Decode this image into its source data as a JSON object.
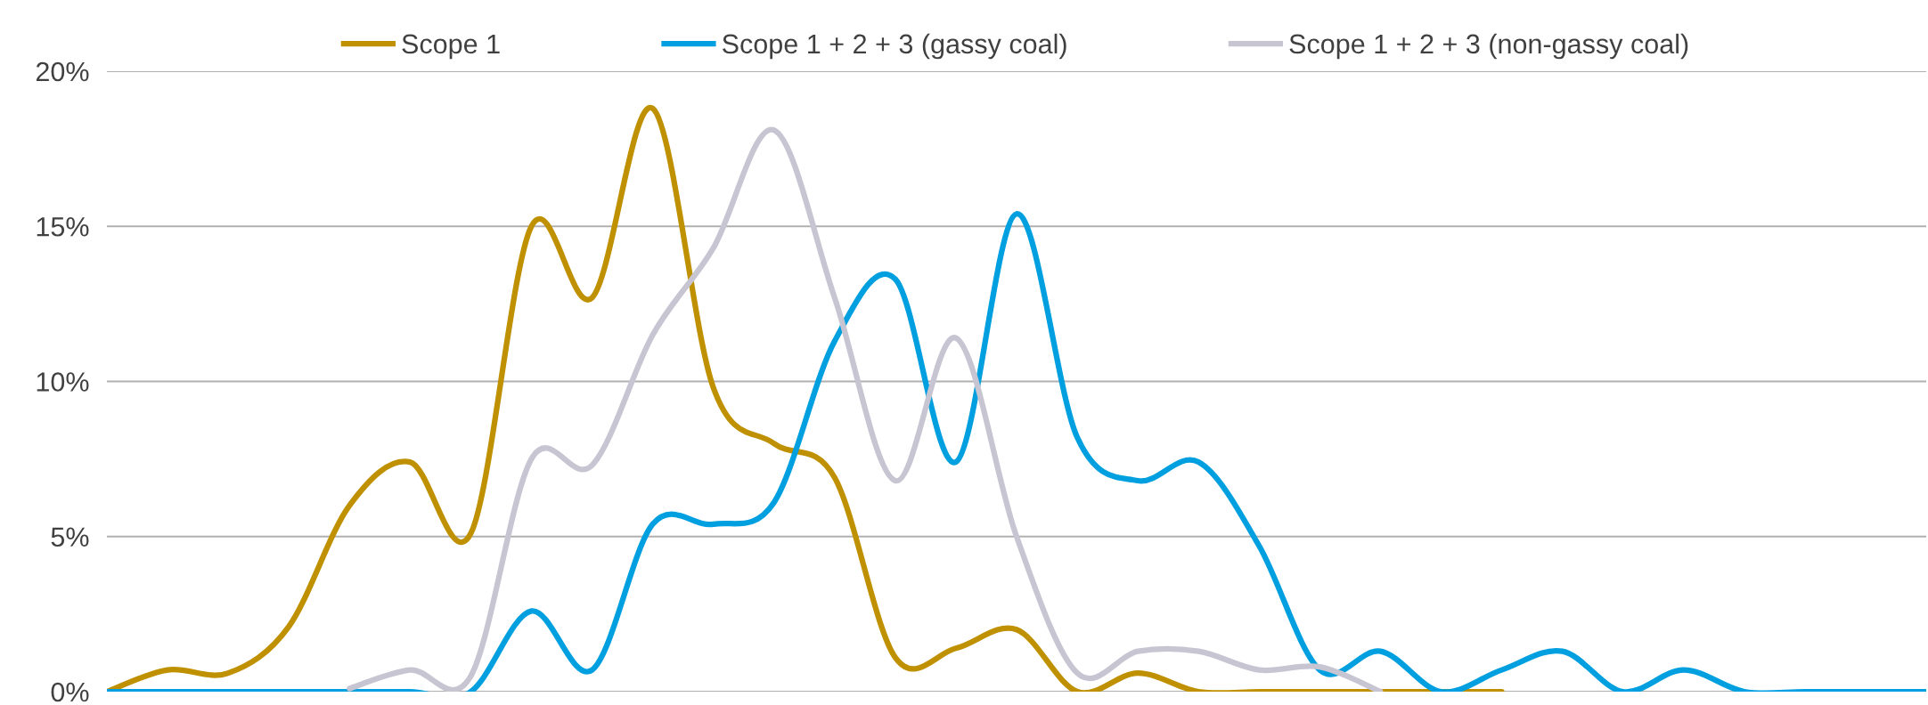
{
  "chart_data": {
    "type": "line",
    "categories": [
      null,
      null,
      null,
      null,
      null,
      null,
      null,
      null,
      null,
      null,
      null,
      null,
      null,
      null,
      null,
      null,
      null,
      null,
      null,
      null,
      null,
      null,
      null,
      null,
      null,
      null,
      null,
      null,
      null,
      null,
      null
    ],
    "series": [
      {
        "name": "Scope 1",
        "color": "#bf9000",
        "values": [
          0,
          0.7,
          0.6,
          2.1,
          6.0,
          7.4,
          5.1,
          15.0,
          12.7,
          18.8,
          9.8,
          8.0,
          6.9,
          1.1,
          1.4,
          2.0,
          0,
          0.6,
          0,
          0,
          0,
          0,
          0,
          0,
          null,
          null,
          null,
          null,
          null,
          null,
          null
        ]
      },
      {
        "name": "Scope 1 + 2 + 3 (gassy coal)",
        "color": "#009fdf",
        "values": [
          0,
          0,
          0,
          0,
          0,
          0,
          0,
          2.6,
          0.7,
          5.4,
          5.4,
          6.1,
          11.3,
          13.3,
          7.4,
          15.4,
          8.2,
          6.8,
          7.4,
          4.7,
          0.7,
          1.3,
          0,
          0.7,
          1.3,
          0,
          0.7,
          0,
          0,
          0,
          0
        ]
      },
      {
        "name": "Scope 1 + 2 + 3 (non-gassy coal)",
        "color": "#c8c5d3",
        "values": [
          null,
          null,
          null,
          null,
          0.1,
          0.7,
          0.5,
          7.5,
          7.3,
          11.5,
          14.3,
          18.1,
          12.7,
          6.8,
          11.4,
          5.0,
          0.6,
          1.3,
          1.3,
          0.7,
          0.8,
          0,
          null,
          null,
          null,
          null,
          null,
          null,
          null,
          null,
          null
        ]
      }
    ],
    "ylim": [
      0,
      20
    ],
    "yticks": [
      {
        "value": 0,
        "label": "0%"
      },
      {
        "value": 5,
        "label": "5%"
      },
      {
        "value": 10,
        "label": "10%"
      },
      {
        "value": 15,
        "label": "15%"
      },
      {
        "value": 20,
        "label": "20%"
      }
    ],
    "grid": "y",
    "legend": "top",
    "tick_labels": "y",
    "marker": "none",
    "line_style": "solid"
  }
}
